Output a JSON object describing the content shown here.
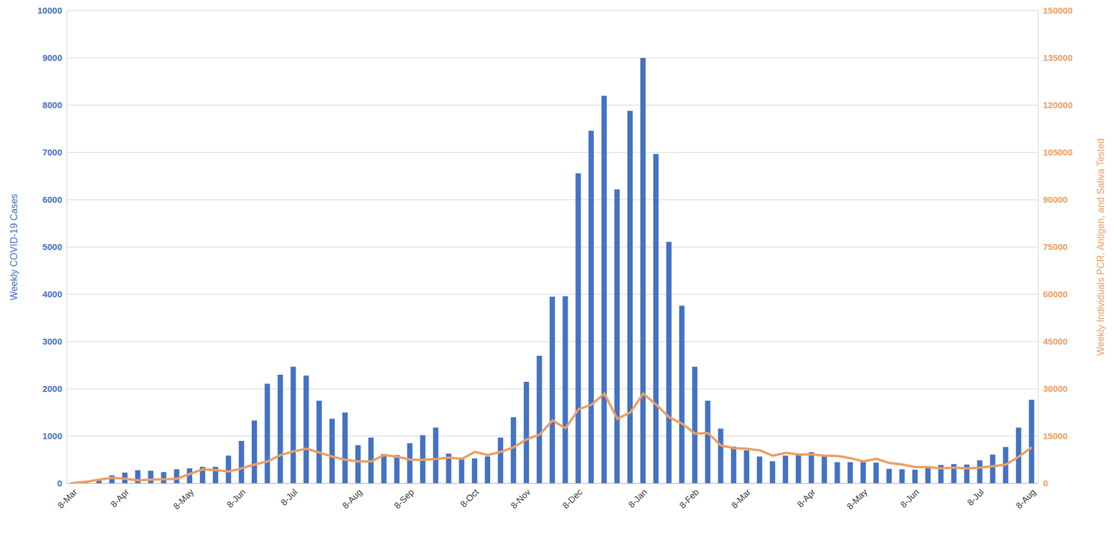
{
  "chart_data": {
    "type": "bar",
    "categories": [
      "8-Mar",
      null,
      null,
      null,
      "8-Apr",
      null,
      null,
      null,
      null,
      "8-May",
      null,
      null,
      null,
      "8-Jun",
      null,
      null,
      null,
      "8-Jul",
      null,
      null,
      null,
      null,
      "8-Aug",
      null,
      null,
      null,
      "8-Sep",
      null,
      null,
      null,
      null,
      "8-Oct",
      null,
      null,
      null,
      "8-Nov",
      null,
      null,
      null,
      "8-Dec",
      null,
      null,
      null,
      null,
      "8-Jan",
      null,
      null,
      null,
      "8-Feb",
      null,
      null,
      null,
      "8-Mar",
      null,
      null,
      null,
      null,
      "8-Apr",
      null,
      null,
      null,
      "8-May",
      null,
      null,
      null,
      "8-Jun",
      null,
      null,
      null,
      null,
      "8-Jul",
      null,
      null,
      null,
      "8-Aug"
    ],
    "y_label": "Weekly COVID-19 Cases",
    "y2_label": "Weekly Individuals PCR, Antigen, and Saliva Tested",
    "series": [
      {
        "type": "bar",
        "color": "#4472c4",
        "values": [
          20,
          10,
          60,
          170,
          230,
          280,
          270,
          240,
          300,
          320,
          350,
          350,
          590,
          900,
          1330,
          2110,
          2300,
          2470,
          2280,
          1750,
          1370,
          1500,
          810,
          970,
          620,
          600,
          850,
          1020,
          1180,
          630,
          550,
          530,
          570,
          970,
          1400,
          2150,
          2700,
          3950,
          3960,
          6560,
          7460,
          8200,
          6220,
          7880,
          9000,
          6970,
          5110,
          3760,
          2470,
          1750,
          1160,
          780,
          700,
          570,
          470,
          590,
          620,
          660,
          600,
          450,
          450,
          480,
          440,
          310,
          300,
          290,
          330,
          390,
          410,
          400,
          490,
          610,
          770,
          1180,
          1770
        ]
      },
      {
        "type": "line",
        "axis": "y2",
        "color": "#ed9e64",
        "marker": "none",
        "line_style": "solid",
        "values": [
          200,
          500,
          1200,
          1800,
          1500,
          1000,
          1200,
          1300,
          1500,
          3000,
          4500,
          4200,
          3800,
          4800,
          6000,
          7000,
          9000,
          10200,
          11000,
          9800,
          8500,
          7500,
          7000,
          7000,
          9000,
          8500,
          7500,
          7500,
          7800,
          8200,
          7800,
          10000,
          9000,
          10000,
          11500,
          14000,
          15500,
          20000,
          17500,
          23500,
          25000,
          28500,
          20500,
          22500,
          28500,
          25000,
          21000,
          19000,
          15800,
          16000,
          12000,
          11200,
          11000,
          10500,
          8800,
          9700,
          9200,
          9200,
          8800,
          8700,
          8000,
          7000,
          7800,
          6500,
          6000,
          5200,
          5200,
          4800,
          5000,
          4800,
          5000,
          5500,
          6000,
          8500,
          11500
        ]
      }
    ],
    "ylim": [
      0,
      10000
    ],
    "yticks": [
      0,
      1000,
      2000,
      3000,
      4000,
      5000,
      6000,
      7000,
      8000,
      9000,
      10000
    ],
    "y2lim": [
      0,
      150000
    ],
    "y2ticks": [
      0,
      15000,
      30000,
      45000,
      60000,
      75000,
      90000,
      105000,
      120000,
      135000,
      150000
    ],
    "grid": true
  }
}
